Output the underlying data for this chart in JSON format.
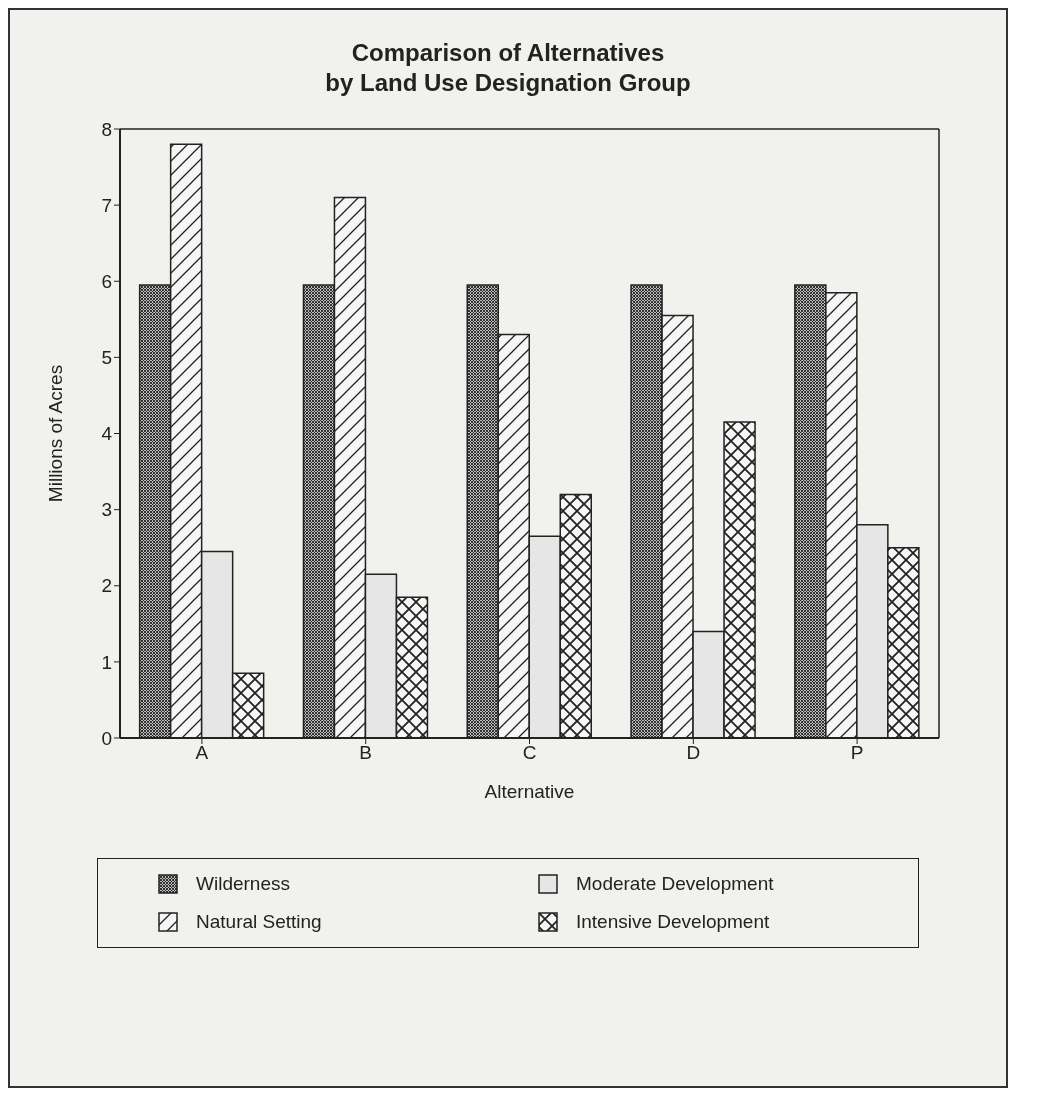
{
  "chart_data": {
    "type": "bar",
    "title": "Comparison of Alternatives\nby Land Use Designation Group",
    "xlabel": "Alternative",
    "ylabel": "Millions of Acres",
    "categories": [
      "A",
      "B",
      "C",
      "D",
      "P"
    ],
    "series": [
      {
        "name": "Wilderness",
        "color": "#222222",
        "values": [
          5.95,
          5.95,
          5.95,
          5.95,
          5.95
        ]
      },
      {
        "name": "Natural Setting",
        "color": "#222222",
        "values": [
          7.8,
          7.1,
          5.3,
          5.55,
          5.85
        ]
      },
      {
        "name": "Moderate Development",
        "color": "#222222",
        "values": [
          2.45,
          2.15,
          2.65,
          1.4,
          2.8
        ]
      },
      {
        "name": "Intensive Development",
        "color": "#222222",
        "values": [
          0.85,
          1.85,
          3.2,
          4.15,
          2.5
        ]
      }
    ],
    "ylim": [
      0,
      8
    ],
    "yticks": [
      0,
      1,
      2,
      3,
      4,
      5,
      6,
      7,
      8
    ],
    "grid": false,
    "legend": "bottom"
  }
}
